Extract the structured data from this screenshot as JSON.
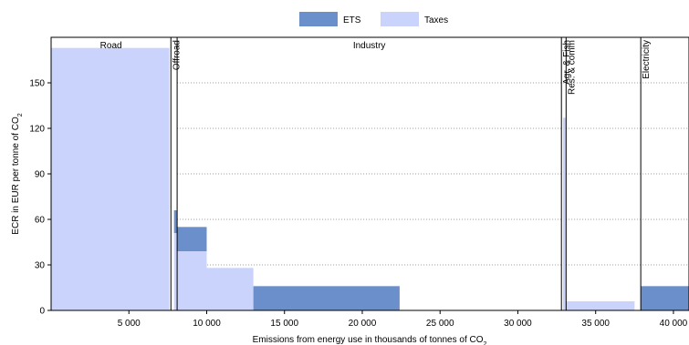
{
  "chart_data": {
    "type": "bar",
    "variant": "variable-width stacked bars",
    "title": "",
    "xlabel": "Emissions from energy use in thousands of tonnes of CO",
    "xlabel_subscript": "2",
    "ylabel": "ECR in EUR per tonne of CO",
    "ylabel_subscript": "2",
    "xlim": [
      0,
      41000
    ],
    "ylim": [
      0,
      180
    ],
    "x_ticks": [
      5000,
      10000,
      15000,
      20000,
      25000,
      30000,
      35000,
      40000
    ],
    "x_tick_labels": [
      "5 000",
      "10 000",
      "15 000",
      "20 000",
      "25 000",
      "30 000",
      "35 000",
      "40 000"
    ],
    "y_ticks": [
      0,
      30,
      60,
      90,
      120,
      150
    ],
    "y_tick_labels": [
      "0",
      "30",
      "60",
      "90",
      "120",
      "150"
    ],
    "grid": "horizontal dotted",
    "legend_position": "top-center",
    "series": [
      {
        "name": "ETS",
        "color": "#6a8fcb"
      },
      {
        "name": "Taxes",
        "color": "#c9d3fb"
      }
    ],
    "sectors": [
      {
        "name": "Road",
        "x_start": 0,
        "x_end": 7700,
        "label_orientation": "horizontal"
      },
      {
        "name": "Offroad",
        "x_start": 7700,
        "x_end": 8100,
        "label_orientation": "vertical"
      },
      {
        "name": "Industry",
        "x_start": 8100,
        "x_end": 32800,
        "label_orientation": "horizontal"
      },
      {
        "name": "Agr. & Fish",
        "x_start": 32800,
        "x_end": 33100,
        "label_orientation": "vertical"
      },
      {
        "name": "Res. & comm",
        "x_start": 33100,
        "x_end": 37900,
        "label_orientation": "vertical"
      },
      {
        "name": "Electricity",
        "x_start": 37900,
        "x_end": 41000,
        "label_orientation": "vertical"
      }
    ],
    "bars": [
      {
        "x_start": 0,
        "x_end": 7600,
        "taxes": 173,
        "ets": 0
      },
      {
        "x_start": 7700,
        "x_end": 7900,
        "taxes": 0,
        "ets": 0
      },
      {
        "x_start": 7900,
        "x_end": 8100,
        "taxes": 51,
        "ets": 15
      },
      {
        "x_start": 8100,
        "x_end": 10000,
        "taxes": 39,
        "ets": 16
      },
      {
        "x_start": 10000,
        "x_end": 13000,
        "taxes": 28,
        "ets": 0
      },
      {
        "x_start": 13000,
        "x_end": 22400,
        "taxes": 0,
        "ets": 16
      },
      {
        "x_start": 32900,
        "x_end": 33100,
        "taxes": 127,
        "ets": 0
      },
      {
        "x_start": 33100,
        "x_end": 37500,
        "taxes": 6,
        "ets": 0
      },
      {
        "x_start": 37900,
        "x_end": 41000,
        "taxes": 0,
        "ets": 16
      }
    ]
  }
}
